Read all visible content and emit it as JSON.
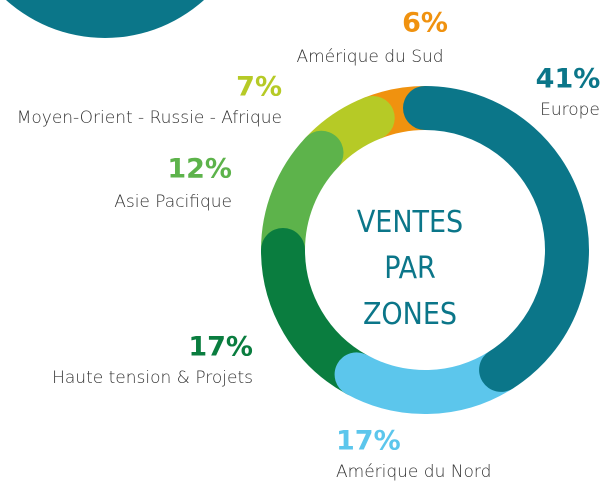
{
  "chart_data": {
    "type": "donut",
    "title": "VENTES PAR ZONES",
    "categories": [
      "Europe",
      "Amérique du Nord",
      "Haute tension & Projets",
      "Asie Pacifique",
      "Moyen-Orient - Russie - Afrique",
      "Amérique du Sud"
    ],
    "values": [
      41,
      17,
      17,
      12,
      7,
      6
    ],
    "value_labels": [
      "41%",
      "17%",
      "17%",
      "12%",
      "7%",
      "6%"
    ],
    "colors": [
      "#0b7689",
      "#5cc6ec",
      "#0a7d3f",
      "#5db34b",
      "#b6ca26",
      "#f0920f"
    ]
  }
}
